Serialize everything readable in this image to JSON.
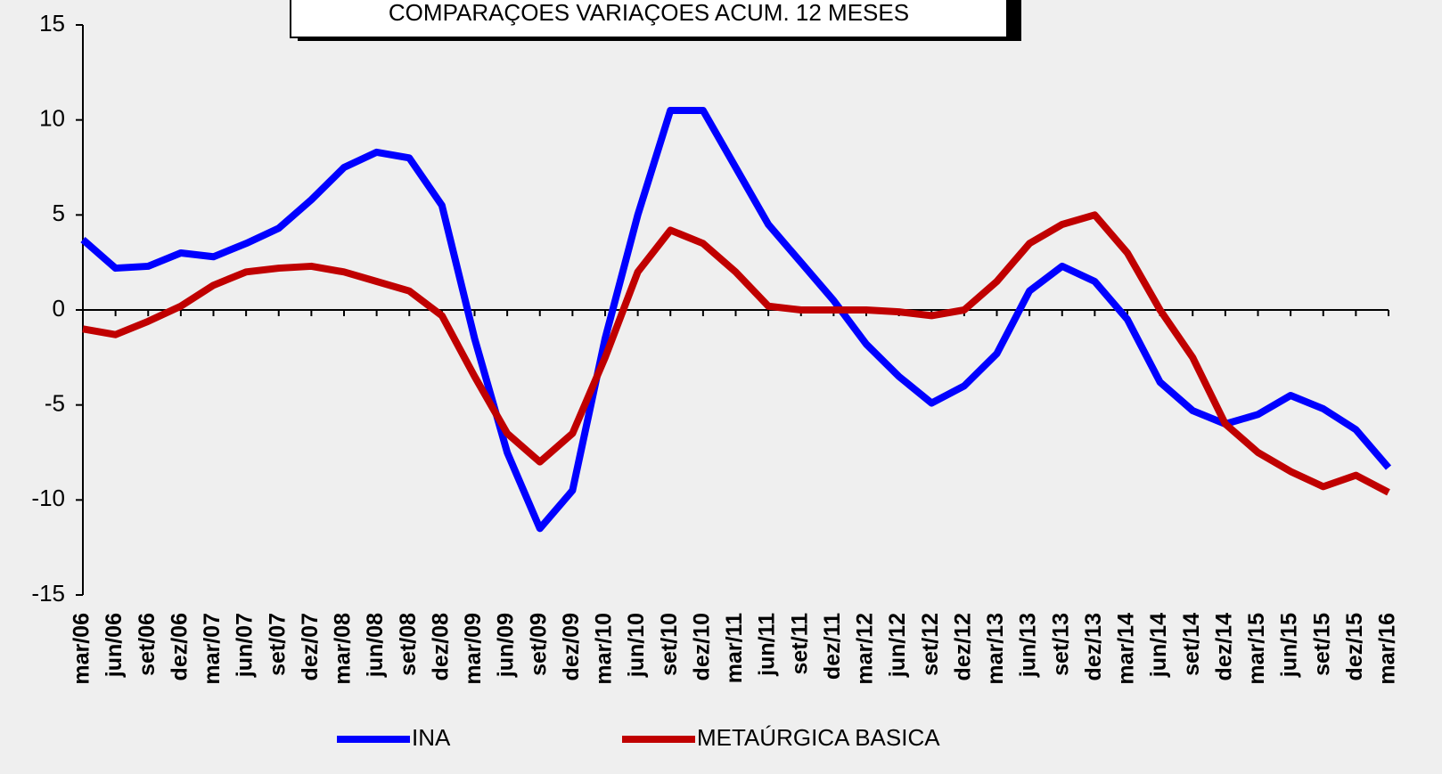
{
  "chart_data": {
    "type": "line",
    "title": "COMPARAÇOES VARIAÇOES ACUM. 12 MESES",
    "categories": [
      "mar/06",
      "jun/06",
      "set/06",
      "dez/06",
      "mar/07",
      "jun/07",
      "set/07",
      "dez/07",
      "mar/08",
      "jun/08",
      "set/08",
      "dez/08",
      "mar/09",
      "jun/09",
      "set/09",
      "dez/09",
      "mar/10",
      "jun/10",
      "set/10",
      "dez/10",
      "mar/11",
      "jun/11",
      "set/11",
      "dez/11",
      "mar/12",
      "jun/12",
      "set/12",
      "dez/12",
      "mar/13",
      "jun/13",
      "set/13",
      "dez/13",
      "mar/14",
      "jun/14",
      "set/14",
      "dez/14",
      "mar/15",
      "jun/15",
      "set/15",
      "dez/15",
      "mar/16"
    ],
    "series": [
      {
        "name": "INA",
        "color": "#0000ff",
        "values": [
          3.7,
          2.2,
          2.3,
          3.0,
          2.8,
          3.5,
          4.3,
          5.8,
          7.5,
          8.3,
          8.0,
          5.5,
          -1.5,
          -7.5,
          -11.5,
          -9.5,
          -1.5,
          5,
          10.5,
          10.5,
          7.5,
          4.5,
          2.5,
          0.5,
          -1.8,
          -3.5,
          -4.9,
          -4.0,
          -2.3,
          1.0,
          2.3,
          1.5,
          -0.5,
          -3.8,
          -5.3,
          -6.0,
          -5.5,
          -4.5,
          -5.2,
          -6.3,
          -8.3
        ]
      },
      {
        "name": "METAÚRGICA BASICA",
        "color": "#c00000",
        "values": [
          -1.0,
          -1.3,
          -0.6,
          0.2,
          1.3,
          2.0,
          2.2,
          2.3,
          2.0,
          1.5,
          1.0,
          -0.3,
          -3.5,
          -6.5,
          -8.0,
          -6.5,
          -2.5,
          2.0,
          4.2,
          3.5,
          2.0,
          0.2,
          0.0,
          0.0,
          0.0,
          -0.1,
          -0.3,
          0.0,
          1.5,
          3.5,
          4.5,
          5.0,
          3.0,
          0.0,
          -2.5,
          -6.0,
          -7.5,
          -8.5,
          -9.3,
          -8.7,
          -9.6
        ]
      }
    ],
    "ylim": [
      -15,
      15
    ],
    "yticks": [
      -15,
      -10,
      -5,
      0,
      5,
      10,
      15
    ],
    "legend": "bottom"
  }
}
